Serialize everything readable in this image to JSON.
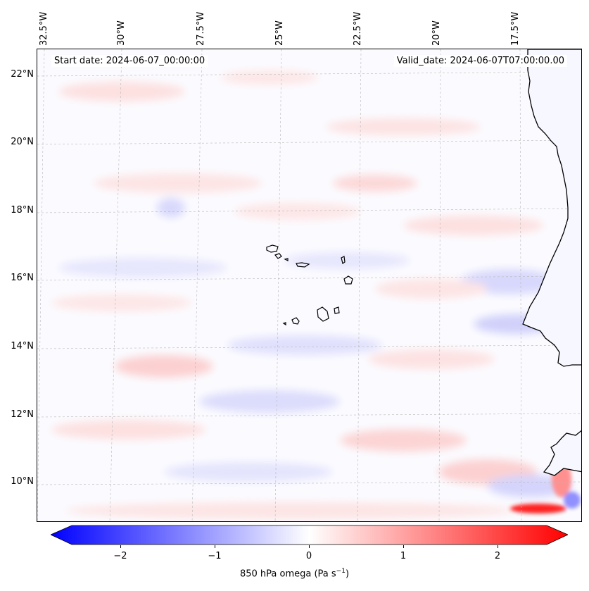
{
  "header": {
    "start_date": "Start date: 2024-06-07_00:00:00",
    "valid_date": "Valid_date: 2024-06-07T07:00:00.00"
  },
  "axes": {
    "longitude_labels": [
      "32.5°W",
      "30°W",
      "27.5°W",
      "25°W",
      "22.5°W",
      "20°W",
      "17.5°W"
    ],
    "latitude_labels": [
      "22°N",
      "20°N",
      "18°N",
      "16°N",
      "14°N",
      "12°N",
      "10°N"
    ]
  },
  "colorbar": {
    "ticks": [
      "−2",
      "−1",
      "0",
      "1",
      "2"
    ],
    "label": "850 hPa omega (Pa s",
    "label_superscript": "−1",
    "label_suffix": ")",
    "colors": {
      "min": "#0000ff",
      "mid": "#ffffff",
      "max": "#ff0000"
    },
    "range": [
      -2.6,
      2.6
    ]
  },
  "map": {
    "gridlines": "dashed",
    "coastline_color": "#000000"
  }
}
